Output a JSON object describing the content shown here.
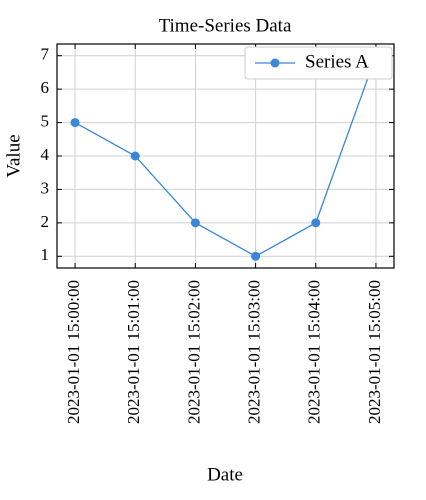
{
  "chart_data": {
    "type": "line",
    "title": "Time-Series Data",
    "x_label": "Date",
    "y_label": "Value",
    "x": [
      "2023-01-01 15:00:00",
      "2023-01-01 15:01:00",
      "2023-01-01 15:02:00",
      "2023-01-01 15:03:00",
      "2023-01-01 15:04:00",
      "2023-01-01 15:05:00"
    ],
    "xlim": [
      "2023-01-01 14:59:42",
      "2023-01-01 15:05:18"
    ],
    "series": [
      {
        "name": "Series A",
        "color": "#3a87d6",
        "values": [
          5,
          4,
          2,
          1,
          2,
          7
        ]
      }
    ],
    "ylim": [
      0.65,
      7.35
    ],
    "yticks": [
      1,
      2,
      3,
      4,
      5,
      6,
      7
    ],
    "grid": true,
    "legend": "upper right"
  }
}
